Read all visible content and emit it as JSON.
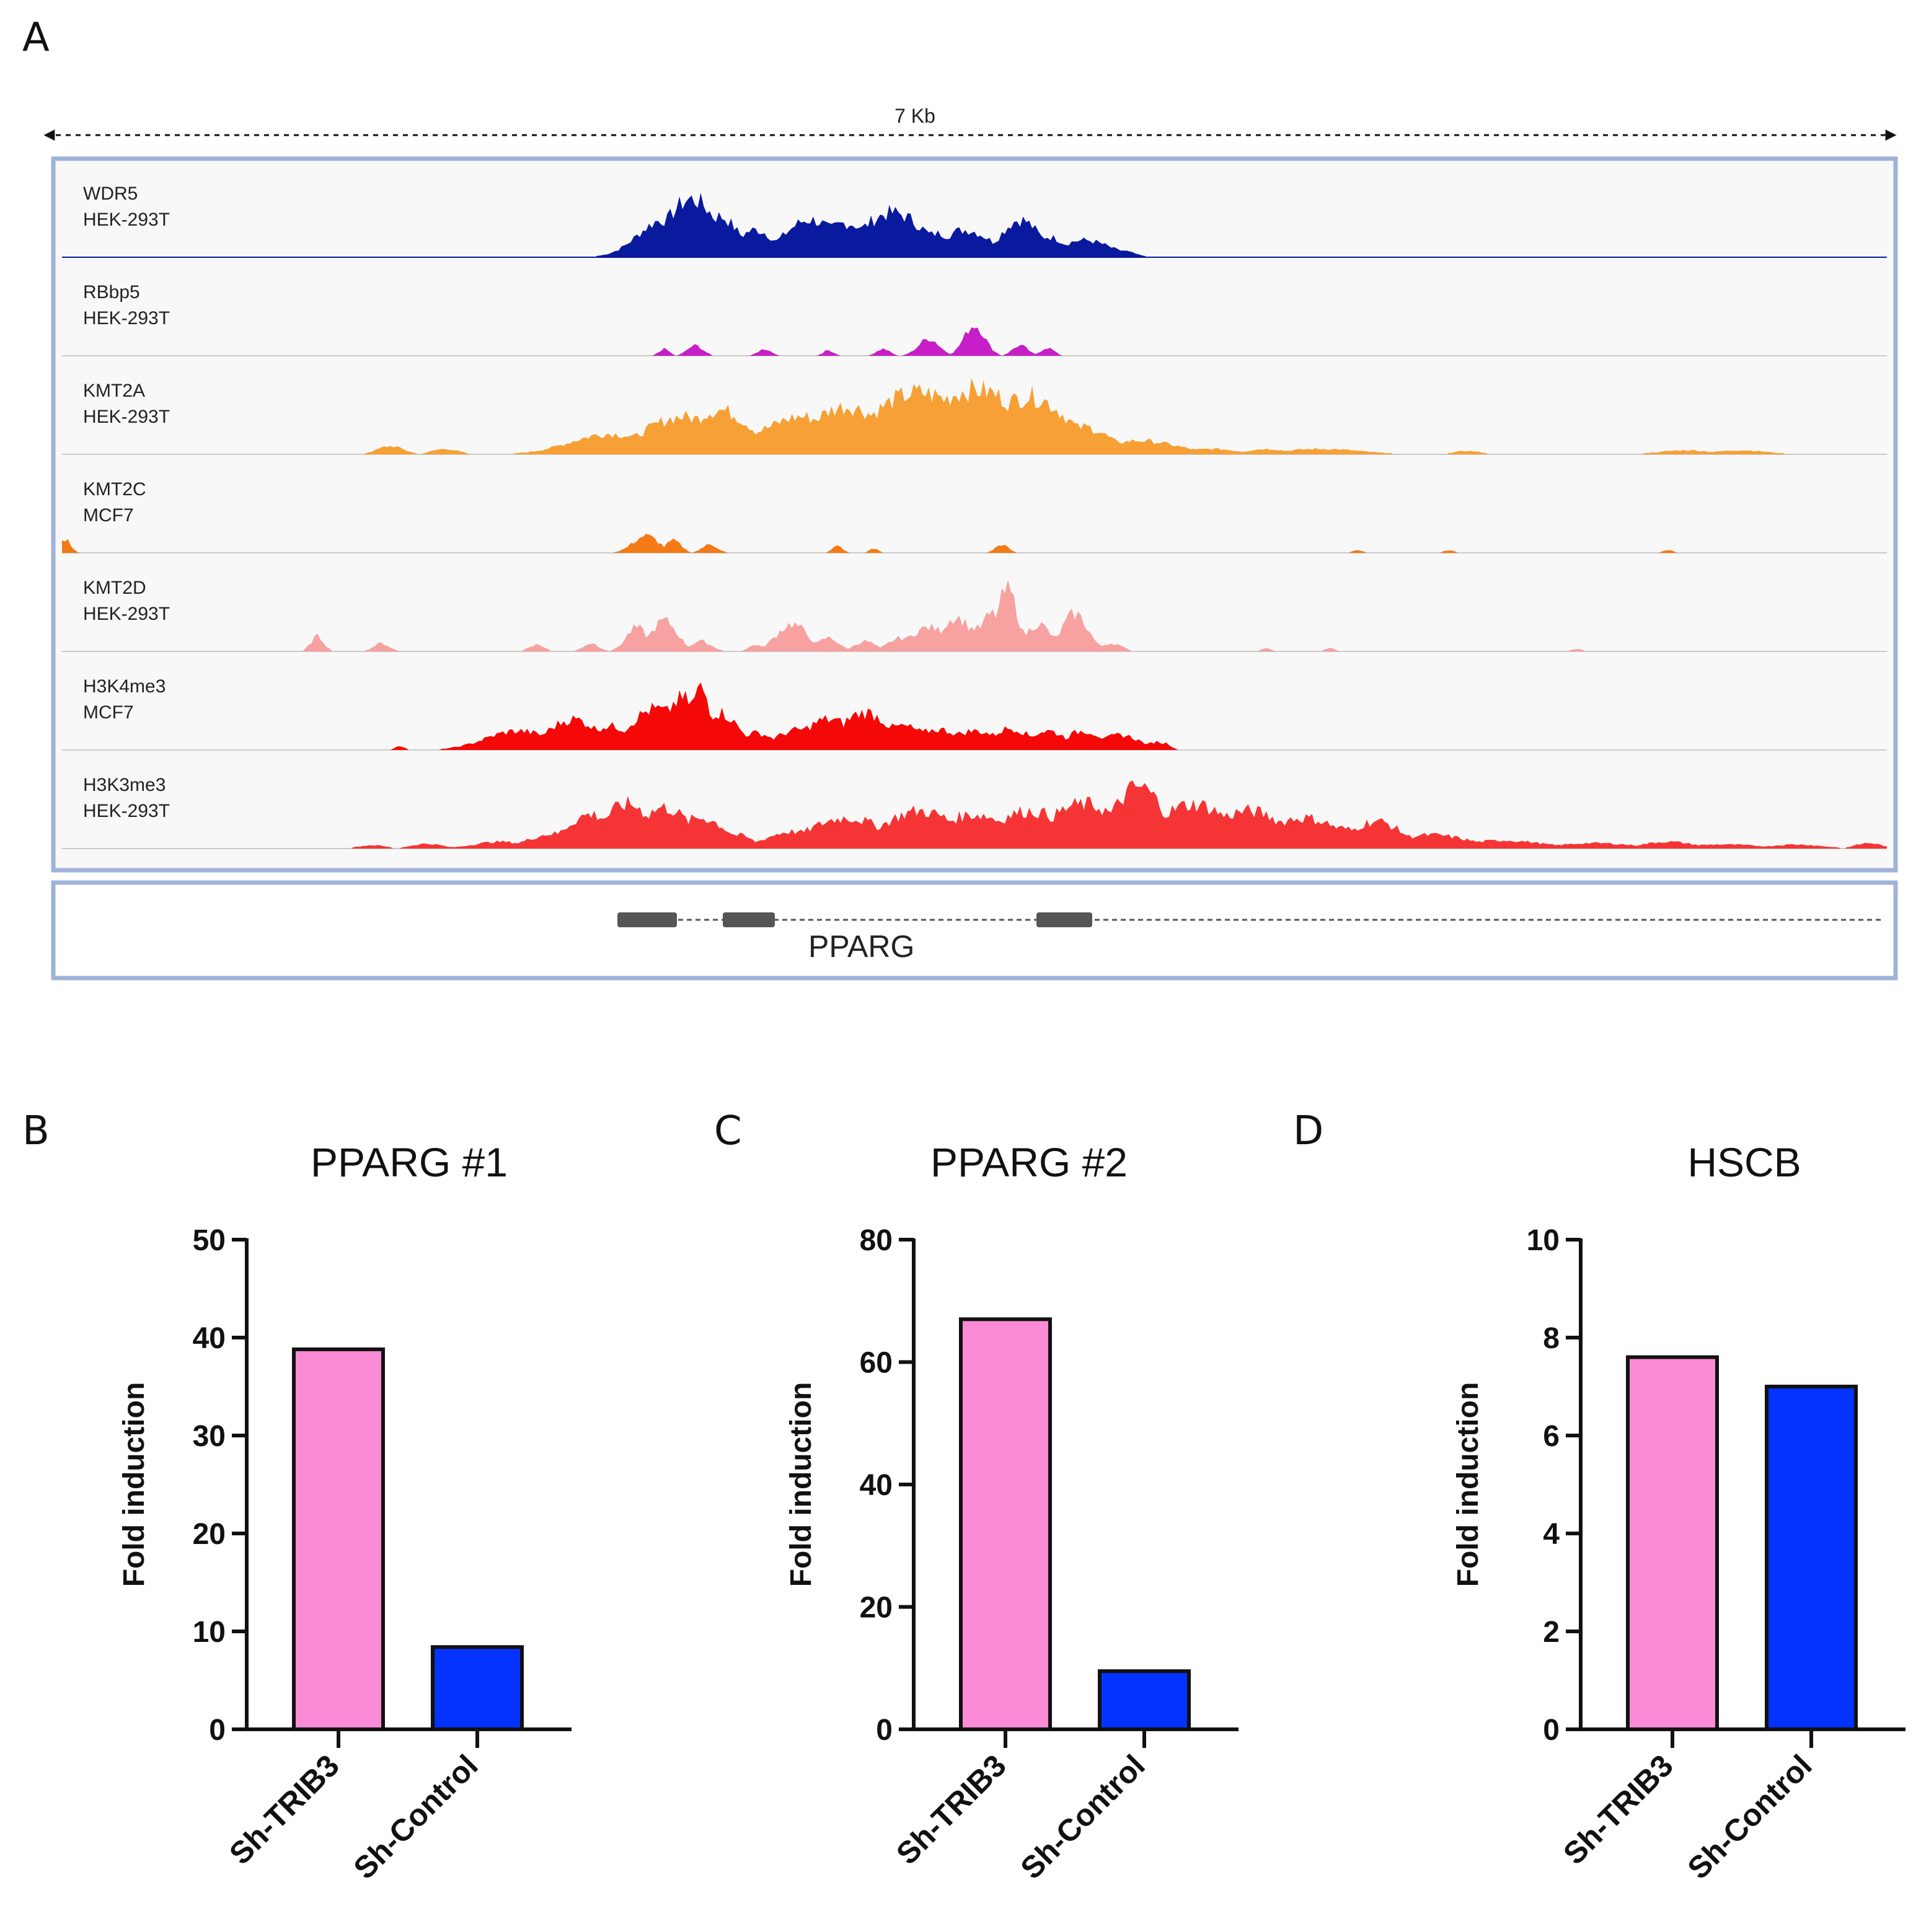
{
  "panel_a": {
    "letter": "A",
    "scale_label": "7 Kb",
    "gene_label": "PPARG",
    "colors": {
      "frame": "#9fb3d9",
      "track_bg": "#f8f8f8",
      "exon": "#555555"
    },
    "tracks": [
      {
        "line1": "WDR5",
        "line2": "HEK-293T",
        "color": "#0a1a9e"
      },
      {
        "line1": "RBbp5",
        "line2": "HEK-293T",
        "color": "#c71ec7"
      },
      {
        "line1": "KMT2A",
        "line2": "HEK-293T",
        "color": "#f7a035"
      },
      {
        "line1": "KMT2C",
        "line2": "MCF7",
        "color": "#f37a16"
      },
      {
        "line1": "KMT2D",
        "line2": "HEK-293T",
        "color": "#f7a1a1"
      },
      {
        "line1": "H3K4me3",
        "line2": "MCF7",
        "color": "#f50808"
      },
      {
        "line1": "H3K3me3",
        "line2": "HEK-293T",
        "color": "#f53535"
      }
    ]
  },
  "chart_data": [
    {
      "type": "bar",
      "panel": "B",
      "title": "PPARG #1",
      "categories": [
        "Sh-TRIB3",
        "Sh-Control"
      ],
      "values": [
        38.8,
        8.4
      ],
      "colors": [
        "#fb8bd6",
        "#0433ff"
      ],
      "ylabel": "Fold induction",
      "ylim": [
        0,
        50
      ],
      "yticks": [
        "0",
        "10",
        "20",
        "30",
        "40",
        "50"
      ]
    },
    {
      "type": "bar",
      "panel": "C",
      "title": "PPARG #2",
      "categories": [
        "Sh-TRIB3",
        "Sh-Control"
      ],
      "values": [
        67,
        9.5
      ],
      "colors": [
        "#fb8bd6",
        "#0433ff"
      ],
      "ylabel": "Fold induction",
      "ylim": [
        0,
        80
      ],
      "yticks": [
        "0",
        "20",
        "40",
        "60",
        "80"
      ]
    },
    {
      "type": "bar",
      "panel": "D",
      "title": "HSCB",
      "categories": [
        "Sh-TRIB3",
        "Sh-Control"
      ],
      "values": [
        7.6,
        7.0
      ],
      "colors": [
        "#fb8bd6",
        "#0433ff"
      ],
      "ylabel": "Fold induction",
      "ylim": [
        0,
        10
      ],
      "yticks": [
        "0",
        "2",
        "4",
        "6",
        "8",
        "10"
      ]
    }
  ]
}
